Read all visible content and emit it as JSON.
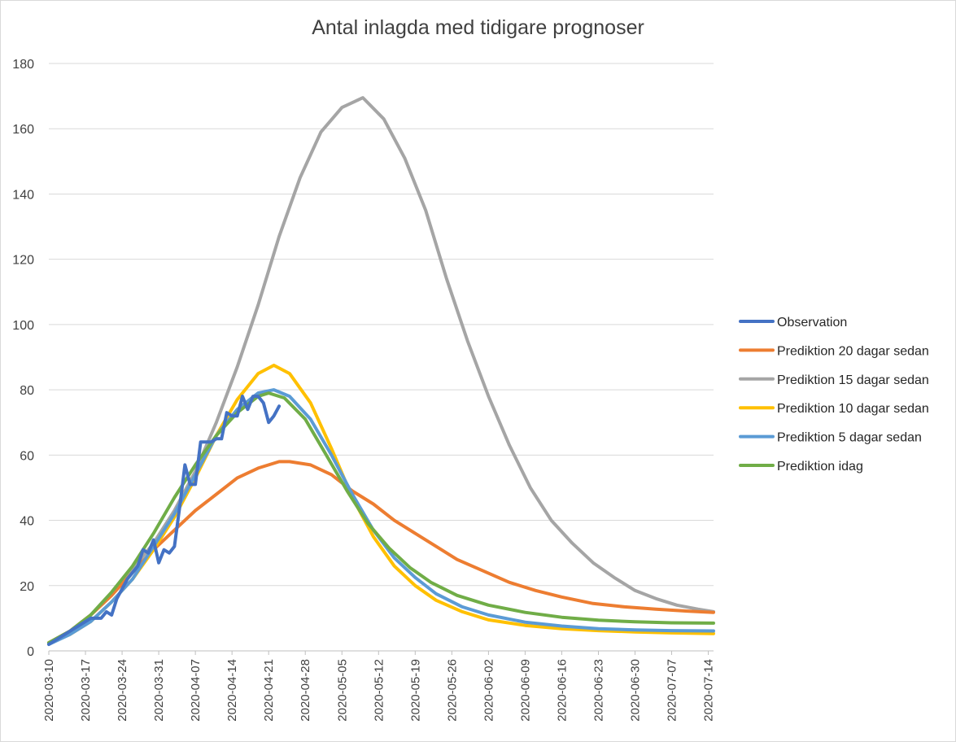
{
  "chart_data": {
    "type": "line",
    "title": "Antal inlagda med tidigare prognoser",
    "xlabel": "",
    "ylabel": "",
    "ylim": [
      0,
      180
    ],
    "yticks": [
      0,
      20,
      40,
      60,
      80,
      100,
      120,
      140,
      160,
      180
    ],
    "x_range": [
      "2020-03-10",
      "2020-07-15"
    ],
    "x_tick_labels": [
      "2020-03-10",
      "2020-03-17",
      "2020-03-24",
      "2020-03-31",
      "2020-04-07",
      "2020-04-14",
      "2020-04-21",
      "2020-04-28",
      "2020-05-05",
      "2020-05-12",
      "2020-05-19",
      "2020-05-26",
      "2020-06-02",
      "2020-06-09",
      "2020-06-16",
      "2020-06-23",
      "2020-06-30",
      "2020-07-07",
      "2020-07-14"
    ],
    "grid": true,
    "legend_position": "right",
    "series": [
      {
        "name": "Observation",
        "color": "#4472c4",
        "points": [
          [
            "2020-03-10",
            2
          ],
          [
            "2020-03-12",
            4
          ],
          [
            "2020-03-14",
            6
          ],
          [
            "2020-03-16",
            8
          ],
          [
            "2020-03-18",
            10
          ],
          [
            "2020-03-20",
            10
          ],
          [
            "2020-03-21",
            12
          ],
          [
            "2020-03-22",
            11
          ],
          [
            "2020-03-23",
            16
          ],
          [
            "2020-03-25",
            22
          ],
          [
            "2020-03-27",
            26
          ],
          [
            "2020-03-28",
            31
          ],
          [
            "2020-03-29",
            30
          ],
          [
            "2020-03-30",
            34
          ],
          [
            "2020-03-31",
            27
          ],
          [
            "2020-04-01",
            31
          ],
          [
            "2020-04-02",
            30
          ],
          [
            "2020-04-03",
            32
          ],
          [
            "2020-04-04",
            44
          ],
          [
            "2020-04-05",
            57
          ],
          [
            "2020-04-06",
            51
          ],
          [
            "2020-04-07",
            51
          ],
          [
            "2020-04-08",
            64
          ],
          [
            "2020-04-09",
            64
          ],
          [
            "2020-04-10",
            64
          ],
          [
            "2020-04-11",
            65
          ],
          [
            "2020-04-12",
            65
          ],
          [
            "2020-04-13",
            73
          ],
          [
            "2020-04-14",
            72
          ],
          [
            "2020-04-15",
            72
          ],
          [
            "2020-04-16",
            78
          ],
          [
            "2020-04-17",
            74
          ],
          [
            "2020-04-18",
            78
          ],
          [
            "2020-04-19",
            78
          ],
          [
            "2020-04-20",
            76
          ],
          [
            "2020-04-21",
            70
          ],
          [
            "2020-04-22",
            72
          ],
          [
            "2020-04-23",
            75
          ]
        ]
      },
      {
        "name": "Prediktion 20 dagar sedan",
        "color": "#ed7d31",
        "points": [
          [
            "2020-03-10",
            2.5
          ],
          [
            "2020-03-14",
            6
          ],
          [
            "2020-03-18",
            11
          ],
          [
            "2020-03-22",
            17
          ],
          [
            "2020-03-26",
            24
          ],
          [
            "2020-03-30",
            31
          ],
          [
            "2020-04-03",
            37
          ],
          [
            "2020-04-07",
            43
          ],
          [
            "2020-04-11",
            48
          ],
          [
            "2020-04-15",
            53
          ],
          [
            "2020-04-19",
            56
          ],
          [
            "2020-04-23",
            58
          ],
          [
            "2020-04-25",
            58
          ],
          [
            "2020-04-29",
            57
          ],
          [
            "2020-05-03",
            54
          ],
          [
            "2020-05-07",
            49
          ],
          [
            "2020-05-11",
            45
          ],
          [
            "2020-05-15",
            40
          ],
          [
            "2020-05-19",
            36
          ],
          [
            "2020-05-23",
            32
          ],
          [
            "2020-05-27",
            28
          ],
          [
            "2020-06-01",
            24.5
          ],
          [
            "2020-06-06",
            21
          ],
          [
            "2020-06-11",
            18.5
          ],
          [
            "2020-06-16",
            16.5
          ],
          [
            "2020-06-22",
            14.5
          ],
          [
            "2020-06-28",
            13.5
          ],
          [
            "2020-07-04",
            12.8
          ],
          [
            "2020-07-10",
            12.2
          ],
          [
            "2020-07-15",
            11.8
          ]
        ]
      },
      {
        "name": "Prediktion 15 dagar sedan",
        "color": "#a5a5a5",
        "points": [
          [
            "2020-03-10",
            2.5
          ],
          [
            "2020-03-14",
            6
          ],
          [
            "2020-03-18",
            11
          ],
          [
            "2020-03-22",
            17
          ],
          [
            "2020-03-26",
            25
          ],
          [
            "2020-03-30",
            33
          ],
          [
            "2020-04-03",
            43
          ],
          [
            "2020-04-07",
            55
          ],
          [
            "2020-04-11",
            70
          ],
          [
            "2020-04-15",
            87
          ],
          [
            "2020-04-19",
            106
          ],
          [
            "2020-04-23",
            127
          ],
          [
            "2020-04-27",
            145
          ],
          [
            "2020-05-01",
            159
          ],
          [
            "2020-05-05",
            166.5
          ],
          [
            "2020-05-09",
            169.5
          ],
          [
            "2020-05-13",
            163
          ],
          [
            "2020-05-17",
            151
          ],
          [
            "2020-05-21",
            135
          ],
          [
            "2020-05-25",
            114
          ],
          [
            "2020-05-29",
            95
          ],
          [
            "2020-06-02",
            78
          ],
          [
            "2020-06-06",
            63
          ],
          [
            "2020-06-10",
            50
          ],
          [
            "2020-06-14",
            40
          ],
          [
            "2020-06-18",
            33
          ],
          [
            "2020-06-22",
            27
          ],
          [
            "2020-06-26",
            22.5
          ],
          [
            "2020-06-30",
            18.5
          ],
          [
            "2020-07-04",
            16
          ],
          [
            "2020-07-08",
            14
          ],
          [
            "2020-07-12",
            12.8
          ],
          [
            "2020-07-15",
            12
          ]
        ]
      },
      {
        "name": "Prediktion 10 dagar sedan",
        "color": "#ffc000",
        "points": [
          [
            "2020-03-10",
            2.5
          ],
          [
            "2020-03-14",
            5
          ],
          [
            "2020-03-18",
            9
          ],
          [
            "2020-03-22",
            15
          ],
          [
            "2020-03-26",
            22
          ],
          [
            "2020-03-30",
            31
          ],
          [
            "2020-04-03",
            41
          ],
          [
            "2020-04-07",
            53
          ],
          [
            "2020-04-11",
            66
          ],
          [
            "2020-04-15",
            77
          ],
          [
            "2020-04-19",
            85
          ],
          [
            "2020-04-22",
            87.5
          ],
          [
            "2020-04-25",
            85
          ],
          [
            "2020-04-29",
            76
          ],
          [
            "2020-05-03",
            62
          ],
          [
            "2020-05-07",
            47
          ],
          [
            "2020-05-11",
            35
          ],
          [
            "2020-05-15",
            26
          ],
          [
            "2020-05-19",
            20
          ],
          [
            "2020-05-23",
            15.5
          ],
          [
            "2020-05-28",
            12
          ],
          [
            "2020-06-02",
            9.5
          ],
          [
            "2020-06-09",
            7.8
          ],
          [
            "2020-06-16",
            6.8
          ],
          [
            "2020-06-23",
            6.2
          ],
          [
            "2020-06-30",
            5.8
          ],
          [
            "2020-07-07",
            5.5
          ],
          [
            "2020-07-15",
            5.3
          ]
        ]
      },
      {
        "name": "Prediktion 5 dagar sedan",
        "color": "#5b9bd5",
        "points": [
          [
            "2020-03-10",
            2
          ],
          [
            "2020-03-14",
            5
          ],
          [
            "2020-03-18",
            9
          ],
          [
            "2020-03-22",
            15
          ],
          [
            "2020-03-26",
            22
          ],
          [
            "2020-03-30",
            32
          ],
          [
            "2020-04-03",
            42
          ],
          [
            "2020-04-07",
            54
          ],
          [
            "2020-04-11",
            66
          ],
          [
            "2020-04-15",
            74
          ],
          [
            "2020-04-19",
            79
          ],
          [
            "2020-04-22",
            80
          ],
          [
            "2020-04-25",
            78
          ],
          [
            "2020-04-29",
            71
          ],
          [
            "2020-05-03",
            60
          ],
          [
            "2020-05-07",
            48
          ],
          [
            "2020-05-11",
            37
          ],
          [
            "2020-05-15",
            28.5
          ],
          [
            "2020-05-19",
            22.5
          ],
          [
            "2020-05-23",
            17.5
          ],
          [
            "2020-05-28",
            13.5
          ],
          [
            "2020-06-02",
            11
          ],
          [
            "2020-06-09",
            8.8
          ],
          [
            "2020-06-16",
            7.6
          ],
          [
            "2020-06-23",
            6.8
          ],
          [
            "2020-06-30",
            6.4
          ],
          [
            "2020-07-07",
            6.2
          ],
          [
            "2020-07-15",
            6.1
          ]
        ]
      },
      {
        "name": "Prediktion idag",
        "color": "#70ad47",
        "points": [
          [
            "2020-03-10",
            2.5
          ],
          [
            "2020-03-14",
            6
          ],
          [
            "2020-03-18",
            11
          ],
          [
            "2020-03-22",
            18
          ],
          [
            "2020-03-26",
            26
          ],
          [
            "2020-03-30",
            36
          ],
          [
            "2020-04-03",
            47
          ],
          [
            "2020-04-07",
            57
          ],
          [
            "2020-04-11",
            66
          ],
          [
            "2020-04-15",
            73
          ],
          [
            "2020-04-19",
            78
          ],
          [
            "2020-04-21",
            79
          ],
          [
            "2020-04-24",
            77.5
          ],
          [
            "2020-04-28",
            71
          ],
          [
            "2020-05-02",
            60
          ],
          [
            "2020-05-06",
            49
          ],
          [
            "2020-05-10",
            39
          ],
          [
            "2020-05-14",
            31.5
          ],
          [
            "2020-05-18",
            25.5
          ],
          [
            "2020-05-22",
            21
          ],
          [
            "2020-05-27",
            17
          ],
          [
            "2020-06-02",
            14
          ],
          [
            "2020-06-09",
            11.8
          ],
          [
            "2020-06-16",
            10.3
          ],
          [
            "2020-06-23",
            9.4
          ],
          [
            "2020-06-30",
            8.9
          ],
          [
            "2020-07-07",
            8.6
          ],
          [
            "2020-07-15",
            8.5
          ]
        ]
      }
    ]
  }
}
